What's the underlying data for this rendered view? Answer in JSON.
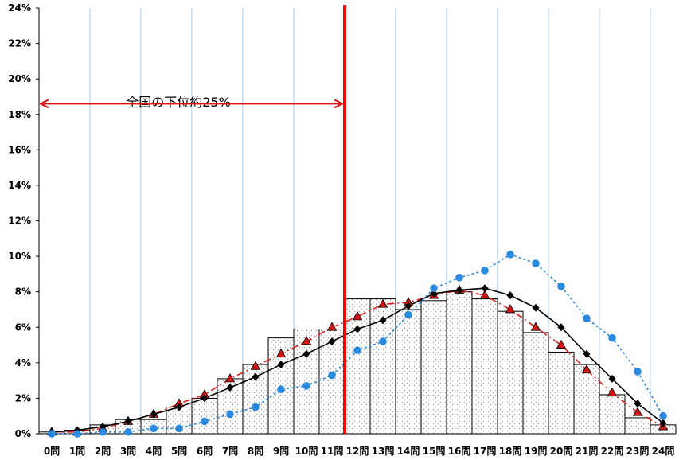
{
  "chart_data": {
    "type": "bar",
    "title": "",
    "xlabel": "",
    "ylabel": "",
    "ylim": [
      0,
      24
    ],
    "y_ticks": [
      "0%",
      "2%",
      "4%",
      "6%",
      "8%",
      "10%",
      "12%",
      "14%",
      "16%",
      "18%",
      "20%",
      "22%",
      "24%"
    ],
    "categories": [
      "0問",
      "1問",
      "2問",
      "3問",
      "4問",
      "5問",
      "6問",
      "7問",
      "8問",
      "9問",
      "10問",
      "11問",
      "12問",
      "13問",
      "14問",
      "15問",
      "16問",
      "17問",
      "18問",
      "19問",
      "20問",
      "21問",
      "22問",
      "23問",
      "24問"
    ],
    "grid": "vertical lines at each 2 categories (light blue), none horizontal",
    "bars": {
      "fill": "dotted",
      "values": [
        0.1,
        0.2,
        0.5,
        0.8,
        0.8,
        1.5,
        2.0,
        3.1,
        3.9,
        5.4,
        5.9,
        5.9,
        7.6,
        7.6,
        7.0,
        7.5,
        8.0,
        7.6,
        6.9,
        5.7,
        4.6,
        3.9,
        2.2,
        0.9,
        0.5
      ]
    },
    "series": [
      {
        "style": "dashed-red-triangle",
        "color": "#e02020",
        "values": [
          0.1,
          0.1,
          0.3,
          0.7,
          1.1,
          1.7,
          2.2,
          3.1,
          3.8,
          4.5,
          5.2,
          6.0,
          6.6,
          7.3,
          7.4,
          7.8,
          8.1,
          7.8,
          7.0,
          6.0,
          5.0,
          3.6,
          2.3,
          1.2,
          0.4
        ]
      },
      {
        "style": "solid-black-diamond",
        "color": "#000000",
        "values": [
          0.1,
          0.2,
          0.4,
          0.7,
          1.1,
          1.5,
          2.0,
          2.6,
          3.2,
          3.9,
          4.5,
          5.2,
          5.9,
          6.4,
          7.2,
          7.9,
          8.1,
          8.2,
          7.8,
          7.1,
          6.0,
          4.5,
          3.1,
          1.7,
          0.6
        ]
      },
      {
        "style": "dotted-blue-circle",
        "color": "#2a8ae0",
        "values": [
          0.0,
          0.0,
          0.1,
          0.1,
          0.3,
          0.3,
          0.7,
          1.1,
          1.5,
          2.5,
          2.7,
          3.3,
          4.7,
          5.2,
          6.7,
          8.2,
          8.8,
          9.2,
          10.1,
          9.6,
          8.3,
          6.5,
          5.4,
          3.5,
          1.0
        ]
      }
    ],
    "annotations": {
      "divider_after_category": "11問",
      "divider_color": "#ff0000",
      "arrow_text": "全国の下位約25%",
      "arrow_y_value": 18.6
    }
  }
}
